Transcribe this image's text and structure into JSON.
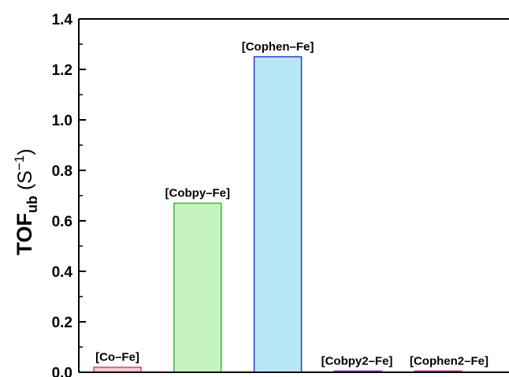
{
  "chart_data": {
    "type": "bar",
    "categories": [
      "[Co–Fe]",
      "[Cobpy–Fe]",
      "[Cophen–Fe]",
      "[Cobpy2–Fe]",
      "[Cophen2–Fe]"
    ],
    "values": [
      0.02,
      0.67,
      1.25,
      0.005,
      0.005
    ],
    "ylabel": {
      "main": "TOF",
      "sub": "ub",
      "unit_open": " (S",
      "unit_sup": "−1",
      "unit_close": ")"
    },
    "ylim": [
      0,
      1.4
    ],
    "yticks": [
      "0.0",
      "0.2",
      "0.4",
      "0.6",
      "0.8",
      "1.0",
      "1.2",
      "1.4"
    ],
    "grid": false,
    "colors": {
      "fills": [
        "#f8c8cc",
        "#c6f4c0",
        "#b8e8f8",
        "#e8b8f4",
        "#f4c0dc"
      ],
      "strokes": [
        "#d84a5c",
        "#3cb83c",
        "#2a3cc8",
        "#9a2ad4",
        "#c8308c"
      ]
    }
  }
}
